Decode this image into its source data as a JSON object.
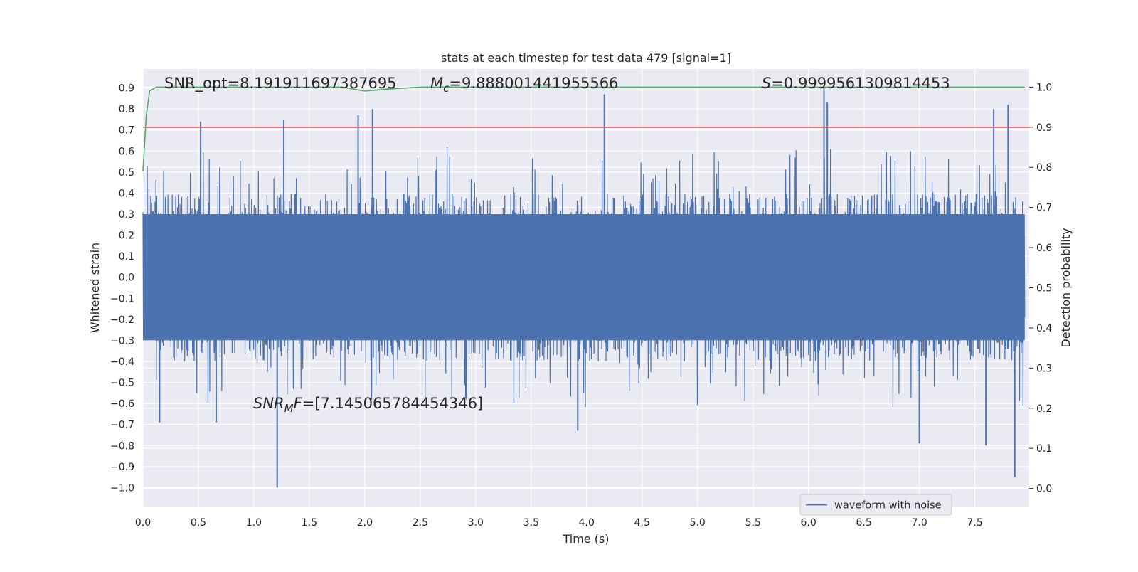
{
  "chart_data": {
    "type": "line",
    "title": "stats at each timestep for test data 479 [signal=1]",
    "xlabel": "Time (s)",
    "ylabel": "Whitened strain",
    "y2label": "Detection probability",
    "xlim": [
      0.0,
      7.99
    ],
    "ylim": [
      -1.09,
      0.99
    ],
    "y2lim": [
      -0.045,
      1.045
    ],
    "x_ticks": [
      0.0,
      0.5,
      1.0,
      1.5,
      2.0,
      2.5,
      3.0,
      3.5,
      4.0,
      4.5,
      5.0,
      5.5,
      6.0,
      6.5,
      7.0,
      7.5
    ],
    "x_tick_labels": [
      "0.0",
      "0.5",
      "1.0",
      "1.5",
      "2.0",
      "2.5",
      "3.0",
      "3.5",
      "4.0",
      "4.5",
      "5.0",
      "5.5",
      "6.0",
      "6.5",
      "7.0",
      "7.5"
    ],
    "y_ticks": [
      0.9,
      0.8,
      0.7,
      0.6,
      0.5,
      0.4,
      0.3,
      0.2,
      0.1,
      0.0,
      -0.1,
      -0.2,
      -0.3,
      -0.4,
      -0.5,
      -0.6,
      -0.7,
      -0.8,
      -0.9,
      -1.0
    ],
    "y_tick_labels": [
      "0.9",
      "0.8",
      "0.7",
      "0.6",
      "0.5",
      "0.4",
      "0.3",
      "0.2",
      "0.1",
      "0.0",
      "−0.1",
      "−0.2",
      "−0.3",
      "−0.4",
      "−0.5",
      "−0.6",
      "−0.7",
      "−0.8",
      "−0.9",
      "−1.0"
    ],
    "y2_ticks": [
      1.0,
      0.9,
      0.8,
      0.7,
      0.6,
      0.5,
      0.4,
      0.3,
      0.2,
      0.1,
      0.0
    ],
    "y2_tick_labels": [
      "1.0",
      "0.9",
      "0.8",
      "0.7",
      "0.6",
      "0.5",
      "0.4",
      "0.3",
      "0.2",
      "0.1",
      "0.0"
    ],
    "grid": true,
    "legend_position": "lower-right",
    "series": [
      {
        "name": "waveform with noise",
        "axis": "left",
        "color": "#4c72b0",
        "kind": "noisy-waveform",
        "n_points": 2048,
        "typical_range": [
          -0.35,
          0.33
        ],
        "max": 0.9,
        "min": -1.0,
        "notable_peaks": [
          {
            "x": 0.52,
            "y": 0.74
          },
          {
            "x": 1.27,
            "y": 0.75
          },
          {
            "x": 1.94,
            "y": 0.77
          },
          {
            "x": 2.07,
            "y": 0.8
          },
          {
            "x": 4.16,
            "y": 0.87
          },
          {
            "x": 6.14,
            "y": 0.9
          },
          {
            "x": 6.17,
            "y": 0.83
          },
          {
            "x": 7.67,
            "y": 0.8
          },
          {
            "x": 7.8,
            "y": 0.82
          }
        ],
        "notable_troughs": [
          {
            "x": 1.21,
            "y": -1.0
          },
          {
            "x": 0.15,
            "y": -0.69
          },
          {
            "x": 0.66,
            "y": -0.69
          },
          {
            "x": 3.92,
            "y": -0.73
          },
          {
            "x": 7.6,
            "y": -0.8
          },
          {
            "x": 7.86,
            "y": -0.95
          },
          {
            "x": 7.0,
            "y": -0.79
          }
        ]
      },
      {
        "name": "",
        "axis": "right",
        "color": "#55a868",
        "kind": "detection-probability",
        "x": [
          0.0,
          0.03,
          0.06,
          0.12,
          1.8,
          2.0,
          2.2,
          2.5,
          7.95
        ],
        "y": [
          0.79,
          0.93,
          0.99,
          1.0,
          1.0,
          0.99,
          0.995,
          1.0,
          1.0
        ]
      },
      {
        "name": "",
        "axis": "right",
        "color": "#c44e52",
        "kind": "threshold",
        "x": [
          0.0,
          7.99
        ],
        "y": [
          0.9,
          0.9
        ]
      }
    ],
    "annotations": [
      {
        "id": "snr-opt",
        "text": "SNR_opt=8.191911697387695"
      },
      {
        "id": "mc",
        "prefix": "M",
        "sub": "c",
        "text": "=9.888001441955566"
      },
      {
        "id": "s",
        "prefix": "S",
        "text": "=0.9999561309814453"
      },
      {
        "id": "snr-mf",
        "prefix": "SNR",
        "sub": "M",
        "mid": "F",
        "text": "=[7.145065784454346]"
      }
    ]
  }
}
